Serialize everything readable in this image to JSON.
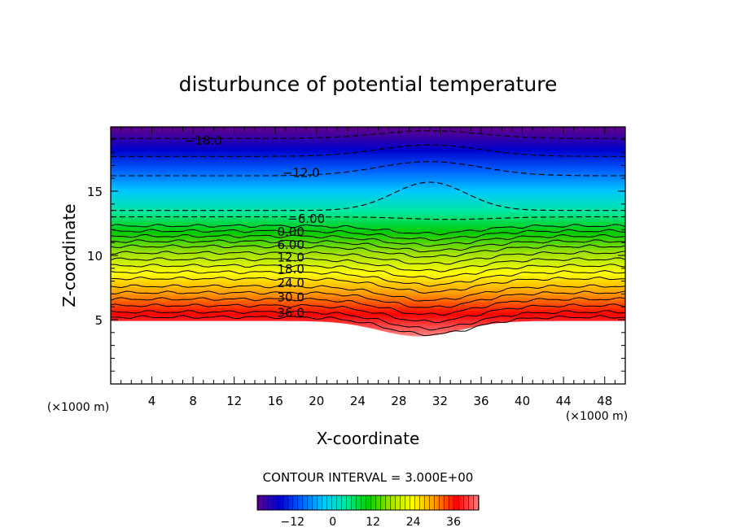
{
  "chart_data": {
    "type": "contour",
    "title": "disturbunce of potential temperature",
    "xlabel": "X-coordinate",
    "ylabel": "Z-coordinate",
    "x_unit": "(×1000 m)",
    "y_unit": "(×1000 m)",
    "xlim": [
      0,
      50
    ],
    "ylim": [
      0,
      20
    ],
    "x_ticks": [
      4,
      8,
      12,
      16,
      20,
      24,
      28,
      32,
      36,
      40,
      44,
      48
    ],
    "y_ticks": [
      5,
      10,
      15
    ],
    "contour_interval_text": "CONTOUR INTERVAL = 3.000E+00",
    "contour_interval": 3,
    "contour_labels": [
      {
        "text": "-18.0",
        "x": 9.0,
        "z": 19.0
      },
      {
        "text": "-12.0",
        "x": 18.5,
        "z": 16.5
      },
      {
        "text": "-6.00",
        "x": 19.0,
        "z": 12.9
      },
      {
        "text": "0.00",
        "x": 17.5,
        "z": 11.9
      },
      {
        "text": "6.00",
        "x": 17.5,
        "z": 10.9
      },
      {
        "text": "12.0",
        "x": 17.5,
        "z": 9.9
      },
      {
        "text": "18.0",
        "x": 17.5,
        "z": 9.0
      },
      {
        "text": "24.0",
        "x": 17.5,
        "z": 7.9
      },
      {
        "text": "30.0",
        "x": 17.5,
        "z": 6.8
      },
      {
        "text": "36.0",
        "x": 17.5,
        "z": 5.6
      }
    ],
    "colorbar": {
      "ticks": [
        -12,
        0,
        12,
        24,
        36
      ],
      "tick_labels": [
        "−12",
        "0",
        "12",
        "24",
        "36"
      ],
      "min": -22.5,
      "max": 43.5
    },
    "color_stops": [
      "#5a0090",
      "#0000cc",
      "#0060ff",
      "#00c8ff",
      "#00e8a0",
      "#00cc00",
      "#a0e000",
      "#ffff00",
      "#ff9900",
      "#ff0000",
      "#ff8080"
    ]
  }
}
